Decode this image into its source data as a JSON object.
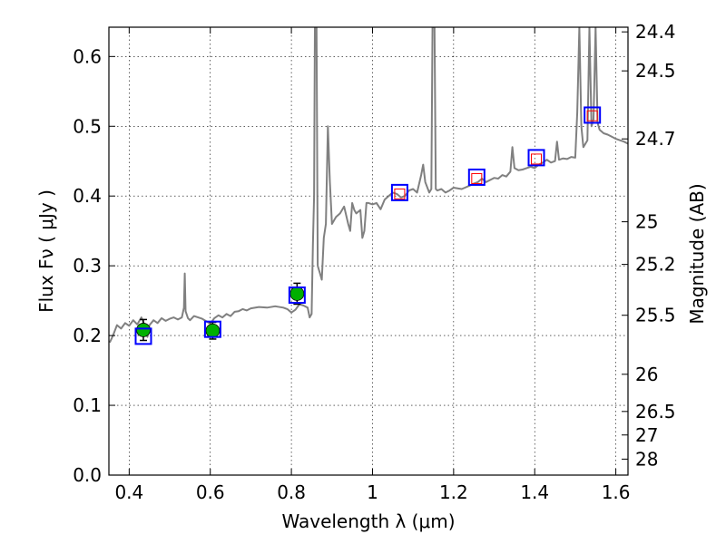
{
  "chart_data": {
    "type": "line",
    "xlabel": "Wavelength  λ (μm)",
    "ylabel": "Flux  Fν  ( μJy )",
    "y2label": "Magnitude (AB)",
    "xlim": [
      0.35,
      1.63
    ],
    "ylim": [
      0.0,
      0.642
    ],
    "grid": true,
    "x_ticks": [
      0.4,
      0.6,
      0.8,
      1.0,
      1.2,
      1.4,
      1.6
    ],
    "x_tick_labels": [
      "0.4",
      "0.6",
      "0.8",
      "1",
      "1.2",
      "1.4",
      "1.6"
    ],
    "y_ticks": [
      0.0,
      0.1,
      0.2,
      0.3,
      0.4,
      0.5,
      0.6
    ],
    "y_tick_labels": [
      "0.0",
      "0.1",
      "0.2",
      "0.3",
      "0.4",
      "0.5",
      "0.6"
    ],
    "y2_ticks": [
      {
        "label": "24.4",
        "flux": 0.6353
      },
      {
        "label": "24.5",
        "flux": 0.5794
      },
      {
        "label": "24.7",
        "flux": 0.4819
      },
      {
        "label": "25",
        "flux": 0.3631
      },
      {
        "label": "25.2",
        "flux": 0.302
      },
      {
        "label": "25.5",
        "flux": 0.2291
      },
      {
        "label": "26",
        "flux": 0.1445
      },
      {
        "label": "26.5",
        "flux": 0.0912
      },
      {
        "label": "27",
        "flux": 0.0575
      },
      {
        "label": "28",
        "flux": 0.0229
      }
    ],
    "series": [
      {
        "kind": "spectrum",
        "color": "#808080",
        "points": [
          [
            0.352,
            0.19
          ],
          [
            0.36,
            0.2
          ],
          [
            0.37,
            0.215
          ],
          [
            0.38,
            0.21
          ],
          [
            0.39,
            0.218
          ],
          [
            0.4,
            0.214
          ],
          [
            0.41,
            0.222
          ],
          [
            0.42,
            0.216
          ],
          [
            0.43,
            0.226
          ],
          [
            0.44,
            0.212
          ],
          [
            0.445,
            0.198
          ],
          [
            0.45,
            0.215
          ],
          [
            0.46,
            0.222
          ],
          [
            0.47,
            0.218
          ],
          [
            0.48,
            0.225
          ],
          [
            0.49,
            0.221
          ],
          [
            0.5,
            0.224
          ],
          [
            0.51,
            0.226
          ],
          [
            0.52,
            0.223
          ],
          [
            0.53,
            0.226
          ],
          [
            0.535,
            0.24
          ],
          [
            0.537,
            0.289
          ],
          [
            0.539,
            0.235
          ],
          [
            0.545,
            0.225
          ],
          [
            0.55,
            0.222
          ],
          [
            0.56,
            0.228
          ],
          [
            0.58,
            0.224
          ],
          [
            0.6,
            0.217
          ],
          [
            0.61,
            0.225
          ],
          [
            0.62,
            0.229
          ],
          [
            0.63,
            0.226
          ],
          [
            0.64,
            0.231
          ],
          [
            0.65,
            0.228
          ],
          [
            0.66,
            0.234
          ],
          [
            0.67,
            0.235
          ],
          [
            0.68,
            0.238
          ],
          [
            0.69,
            0.236
          ],
          [
            0.7,
            0.239
          ],
          [
            0.72,
            0.241
          ],
          [
            0.74,
            0.24
          ],
          [
            0.76,
            0.242
          ],
          [
            0.78,
            0.24
          ],
          [
            0.79,
            0.238
          ],
          [
            0.8,
            0.233
          ],
          [
            0.81,
            0.237
          ],
          [
            0.82,
            0.245
          ],
          [
            0.83,
            0.243
          ],
          [
            0.84,
            0.24
          ],
          [
            0.845,
            0.226
          ],
          [
            0.85,
            0.231
          ],
          [
            0.853,
            0.33
          ],
          [
            0.856,
            0.4
          ],
          [
            0.858,
            0.642
          ],
          [
            0.862,
            0.642
          ],
          [
            0.865,
            0.3
          ],
          [
            0.87,
            0.29
          ],
          [
            0.875,
            0.28
          ],
          [
            0.88,
            0.34
          ],
          [
            0.885,
            0.36
          ],
          [
            0.89,
            0.5
          ],
          [
            0.895,
            0.42
          ],
          [
            0.9,
            0.36
          ],
          [
            0.91,
            0.37
          ],
          [
            0.92,
            0.375
          ],
          [
            0.93,
            0.385
          ],
          [
            0.94,
            0.36
          ],
          [
            0.945,
            0.35
          ],
          [
            0.95,
            0.39
          ],
          [
            0.955,
            0.38
          ],
          [
            0.96,
            0.375
          ],
          [
            0.97,
            0.38
          ],
          [
            0.975,
            0.34
          ],
          [
            0.98,
            0.35
          ],
          [
            0.985,
            0.39
          ],
          [
            0.99,
            0.39
          ],
          [
            1.0,
            0.388
          ],
          [
            1.01,
            0.39
          ],
          [
            1.02,
            0.381
          ],
          [
            1.03,
            0.395
          ],
          [
            1.04,
            0.4
          ],
          [
            1.05,
            0.405
          ],
          [
            1.06,
            0.403
          ],
          [
            1.07,
            0.398
          ],
          [
            1.08,
            0.4
          ],
          [
            1.09,
            0.408
          ],
          [
            1.1,
            0.41
          ],
          [
            1.11,
            0.405
          ],
          [
            1.12,
            0.43
          ],
          [
            1.125,
            0.445
          ],
          [
            1.13,
            0.42
          ],
          [
            1.14,
            0.405
          ],
          [
            1.145,
            0.41
          ],
          [
            1.148,
            0.642
          ],
          [
            1.153,
            0.642
          ],
          [
            1.156,
            0.41
          ],
          [
            1.16,
            0.408
          ],
          [
            1.17,
            0.41
          ],
          [
            1.18,
            0.405
          ],
          [
            1.19,
            0.408
          ],
          [
            1.2,
            0.412
          ],
          [
            1.22,
            0.41
          ],
          [
            1.24,
            0.415
          ],
          [
            1.25,
            0.418
          ],
          [
            1.26,
            0.42
          ],
          [
            1.27,
            0.425
          ],
          [
            1.28,
            0.42
          ],
          [
            1.29,
            0.423
          ],
          [
            1.3,
            0.426
          ],
          [
            1.31,
            0.425
          ],
          [
            1.32,
            0.43
          ],
          [
            1.33,
            0.428
          ],
          [
            1.34,
            0.435
          ],
          [
            1.345,
            0.47
          ],
          [
            1.35,
            0.44
          ],
          [
            1.36,
            0.437
          ],
          [
            1.37,
            0.438
          ],
          [
            1.38,
            0.44
          ],
          [
            1.39,
            0.442
          ],
          [
            1.4,
            0.44
          ],
          [
            1.41,
            0.445
          ],
          [
            1.42,
            0.448
          ],
          [
            1.43,
            0.452
          ],
          [
            1.44,
            0.448
          ],
          [
            1.45,
            0.45
          ],
          [
            1.455,
            0.478
          ],
          [
            1.46,
            0.452
          ],
          [
            1.47,
            0.454
          ],
          [
            1.48,
            0.453
          ],
          [
            1.49,
            0.456
          ],
          [
            1.5,
            0.455
          ],
          [
            1.505,
            0.52
          ],
          [
            1.51,
            0.642
          ],
          [
            1.515,
            0.5
          ],
          [
            1.52,
            0.47
          ],
          [
            1.525,
            0.475
          ],
          [
            1.53,
            0.48
          ],
          [
            1.535,
            0.642
          ],
          [
            1.54,
            0.5
          ],
          [
            1.545,
            0.51
          ],
          [
            1.55,
            0.642
          ],
          [
            1.555,
            0.505
          ],
          [
            1.56,
            0.495
          ],
          [
            1.57,
            0.49
          ],
          [
            1.58,
            0.488
          ],
          [
            1.59,
            0.485
          ],
          [
            1.6,
            0.482
          ],
          [
            1.61,
            0.48
          ],
          [
            1.62,
            0.478
          ],
          [
            1.63,
            0.475
          ]
        ]
      },
      {
        "kind": "observed_flux",
        "color": "#00b000",
        "points": [
          {
            "x": 0.435,
            "y": 0.208,
            "err": 0.015
          },
          {
            "x": 0.606,
            "y": 0.207,
            "err": 0.012
          },
          {
            "x": 0.814,
            "y": 0.26,
            "err": 0.015
          }
        ]
      },
      {
        "kind": "model_photometry",
        "color": "#0000ff",
        "points": [
          {
            "x": 0.435,
            "y": 0.199
          },
          {
            "x": 0.606,
            "y": 0.209
          },
          {
            "x": 0.814,
            "y": 0.258
          },
          {
            "x": 1.067,
            "y": 0.405
          },
          {
            "x": 1.257,
            "y": 0.427
          },
          {
            "x": 1.404,
            "y": 0.455
          },
          {
            "x": 1.542,
            "y": 0.516
          }
        ]
      },
      {
        "kind": "upper_limits",
        "color": "#ff0000",
        "points": [
          {
            "x": 1.067,
            "y": 0.403
          },
          {
            "x": 1.257,
            "y": 0.425
          },
          {
            "x": 1.404,
            "y": 0.453
          },
          {
            "x": 1.542,
            "y": 0.515
          }
        ]
      }
    ]
  }
}
